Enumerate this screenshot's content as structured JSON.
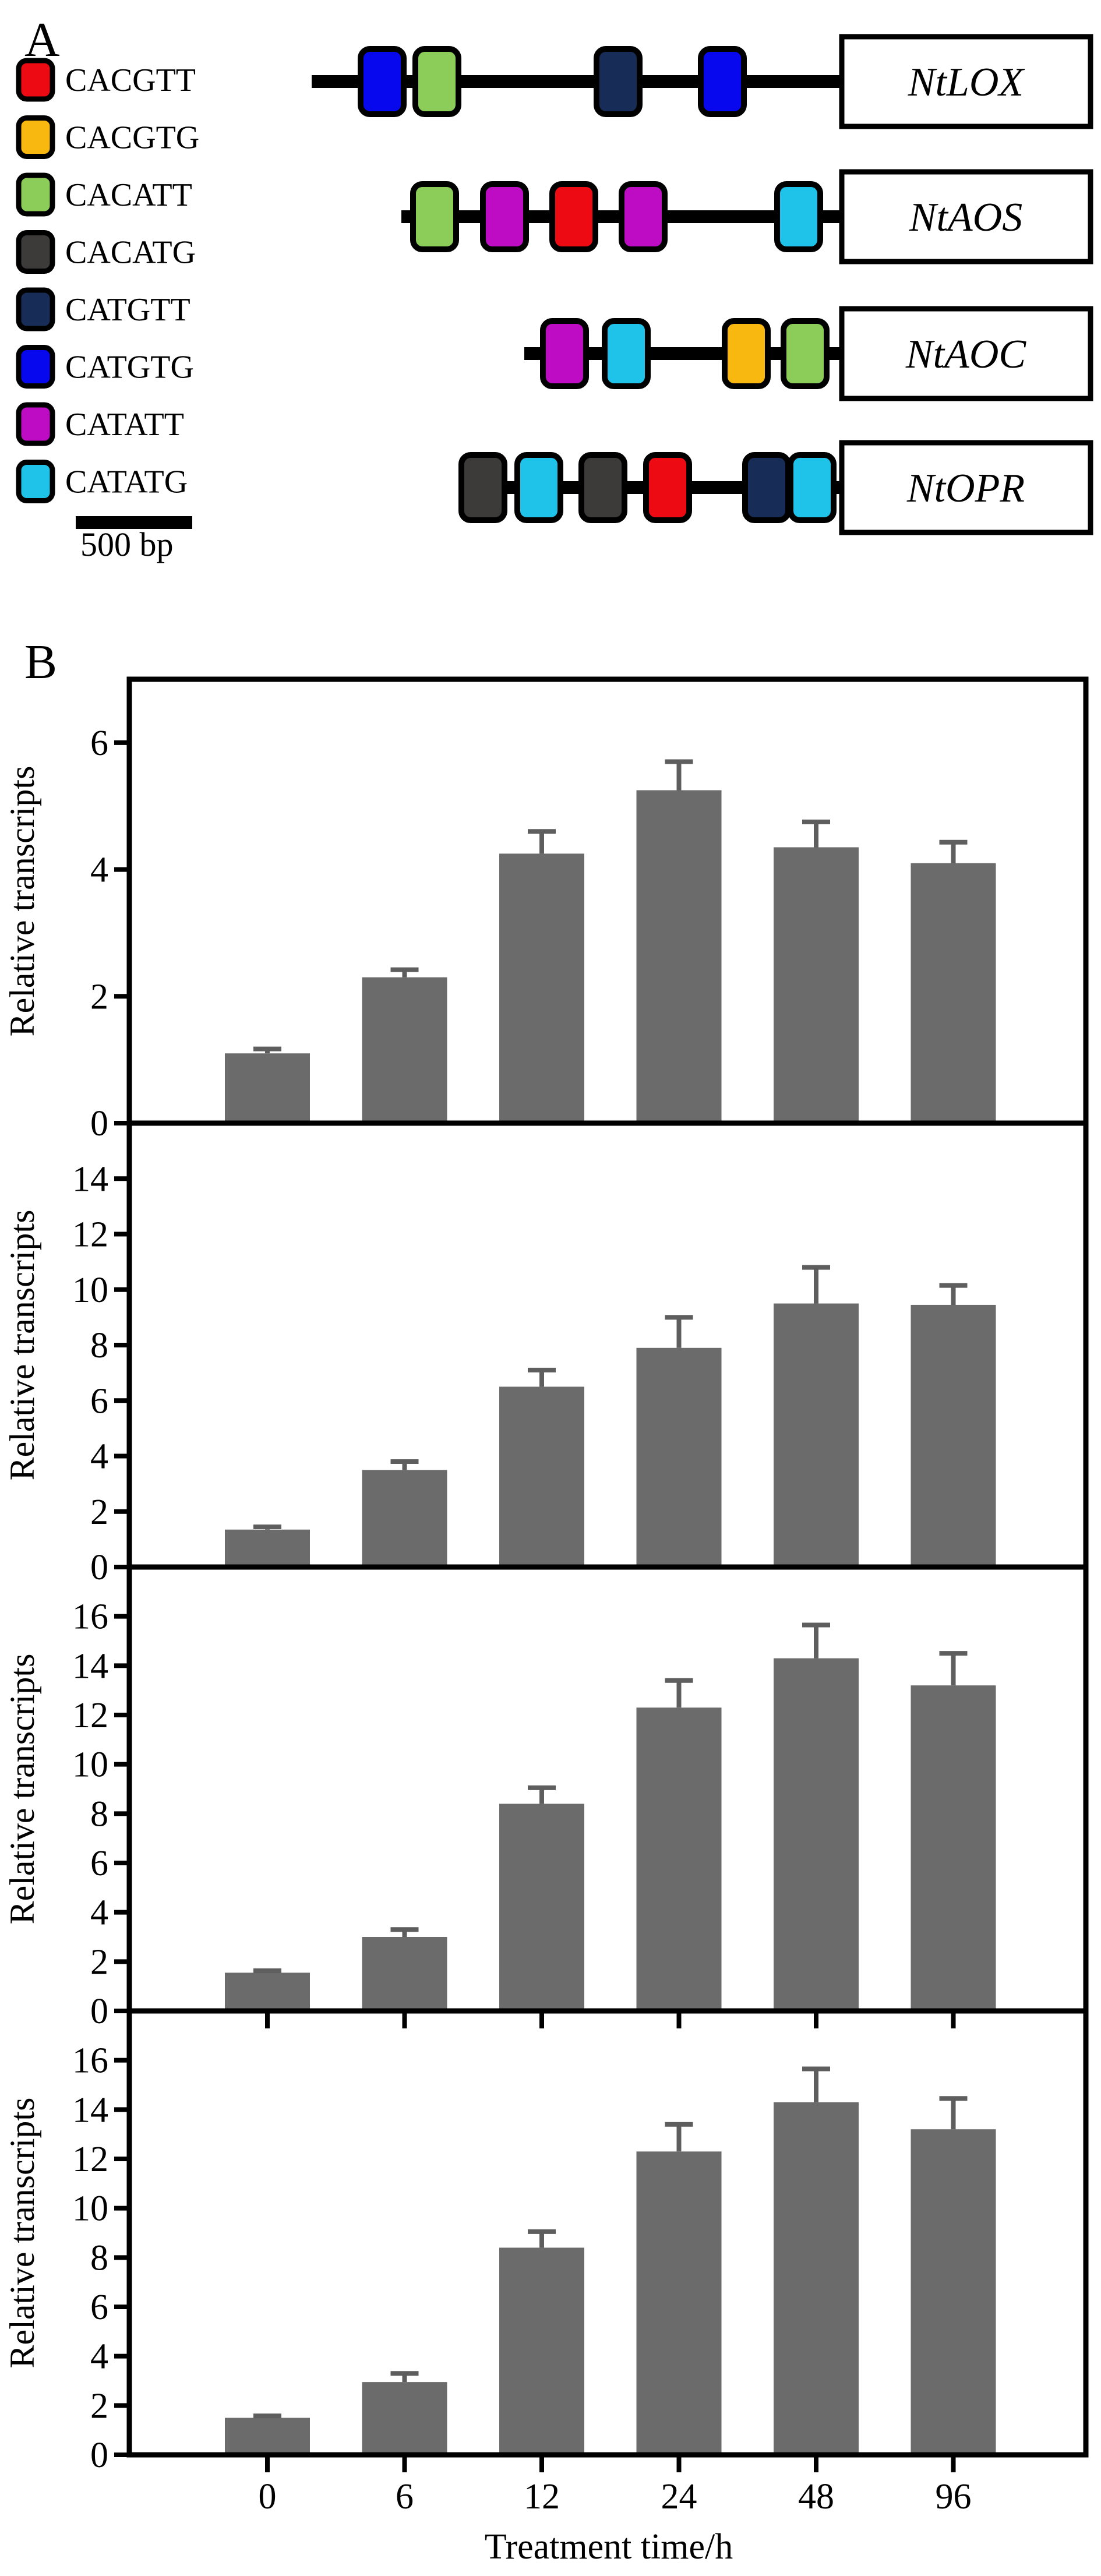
{
  "figure": {
    "panel_a_label": "A",
    "panel_b_label": "B"
  },
  "panel_a": {
    "legend": [
      {
        "motif": "CACGTT",
        "color": "#ee0a12"
      },
      {
        "motif": "CACGTG",
        "color": "#f9b810"
      },
      {
        "motif": "CACATT",
        "color": "#8ccd5a"
      },
      {
        "motif": "CACATG",
        "color": "#3d3b3a"
      },
      {
        "motif": "CATGTT",
        "color": "#172d57"
      },
      {
        "motif": "CATGTG",
        "color": "#0708ee"
      },
      {
        "motif": "CATATT",
        "color": "#bd0cc4"
      },
      {
        "motif": "CATATG",
        "color": "#1fc3ea"
      }
    ],
    "genes": [
      {
        "name": "NtLOX",
        "line_start": 535,
        "motifs": [
          {
            "motif": "CATGTG",
            "x": 656
          },
          {
            "motif": "CACATT",
            "x": 750
          },
          {
            "motif": "CATGTT",
            "x": 1061
          },
          {
            "motif": "CATGTG",
            "x": 1240
          }
        ]
      },
      {
        "name": "NtAOS",
        "line_start": 689,
        "motifs": [
          {
            "motif": "CACATT",
            "x": 746
          },
          {
            "motif": "CATATT",
            "x": 866
          },
          {
            "motif": "CACGTT",
            "x": 985
          },
          {
            "motif": "CATATT",
            "x": 1104
          },
          {
            "motif": "CATATG",
            "x": 1371
          }
        ]
      },
      {
        "name": "NtAOC",
        "line_start": 900,
        "motifs": [
          {
            "motif": "CATATT",
            "x": 969
          },
          {
            "motif": "CATATG",
            "x": 1075
          },
          {
            "motif": "CACGTG",
            "x": 1281
          },
          {
            "motif": "CACATT",
            "x": 1382
          }
        ]
      },
      {
        "name": "NtOPR",
        "line_start": 790,
        "motifs": [
          {
            "motif": "CACATG",
            "x": 829
          },
          {
            "motif": "CATATG",
            "x": 925
          },
          {
            "motif": "CACATG",
            "x": 1035
          },
          {
            "motif": "CACGTT",
            "x": 1146
          },
          {
            "motif": "CATGTT",
            "x": 1316
          },
          {
            "motif": "CATATG",
            "x": 1394
          }
        ]
      }
    ],
    "scale_bar_label": "500 bp"
  },
  "chart_data": [
    {
      "type": "bar",
      "categories": [
        "0",
        "6",
        "12",
        "24",
        "48",
        "96"
      ],
      "values": [
        1.1,
        2.3,
        4.25,
        5.25,
        4.35,
        4.1
      ],
      "errors": [
        0.07,
        0.12,
        0.35,
        0.45,
        0.4,
        0.33
      ],
      "title": "",
      "xlabel": "",
      "ylabel": "Relative transcripts",
      "ylim": [
        0,
        7
      ],
      "yticks": [
        0,
        2,
        4,
        6
      ],
      "grid": false,
      "bar_color": "#6b6b6b"
    },
    {
      "type": "bar",
      "categories": [
        "0",
        "6",
        "12",
        "24",
        "48",
        "96"
      ],
      "values": [
        1.35,
        3.5,
        6.5,
        7.9,
        9.5,
        9.45
      ],
      "errors": [
        0.1,
        0.3,
        0.6,
        1.1,
        1.3,
        0.7
      ],
      "title": "",
      "xlabel": "",
      "ylabel": "Relative transcripts",
      "ylim": [
        0,
        16
      ],
      "yticks": [
        0,
        2,
        4,
        6,
        8,
        10,
        12,
        14
      ],
      "grid": false,
      "bar_color": "#6b6b6b"
    },
    {
      "type": "bar",
      "categories": [
        "0",
        "6",
        "12",
        "24",
        "48",
        "96"
      ],
      "values": [
        1.55,
        3.0,
        8.4,
        12.3,
        14.3,
        13.2
      ],
      "errors": [
        0.08,
        0.3,
        0.65,
        1.1,
        1.35,
        1.3
      ],
      "title": "",
      "xlabel": "",
      "ylabel": "Relative transcripts",
      "ylim": [
        0,
        18
      ],
      "yticks": [
        0,
        2,
        4,
        6,
        8,
        10,
        12,
        14,
        16
      ],
      "grid": false,
      "bar_color": "#6b6b6b"
    },
    {
      "type": "bar",
      "categories": [
        "0",
        "6",
        "12",
        "24",
        "48",
        "96"
      ],
      "values": [
        1.5,
        2.95,
        8.4,
        12.3,
        14.3,
        13.2
      ],
      "errors": [
        0.08,
        0.35,
        0.65,
        1.1,
        1.35,
        1.25
      ],
      "title": "",
      "xlabel": "Treatment time/h",
      "ylabel": "Relative transcripts",
      "ylim": [
        0,
        18
      ],
      "yticks": [
        0,
        2,
        4,
        6,
        8,
        10,
        12,
        14,
        16
      ],
      "grid": false,
      "bar_color": "#6b6b6b"
    }
  ]
}
